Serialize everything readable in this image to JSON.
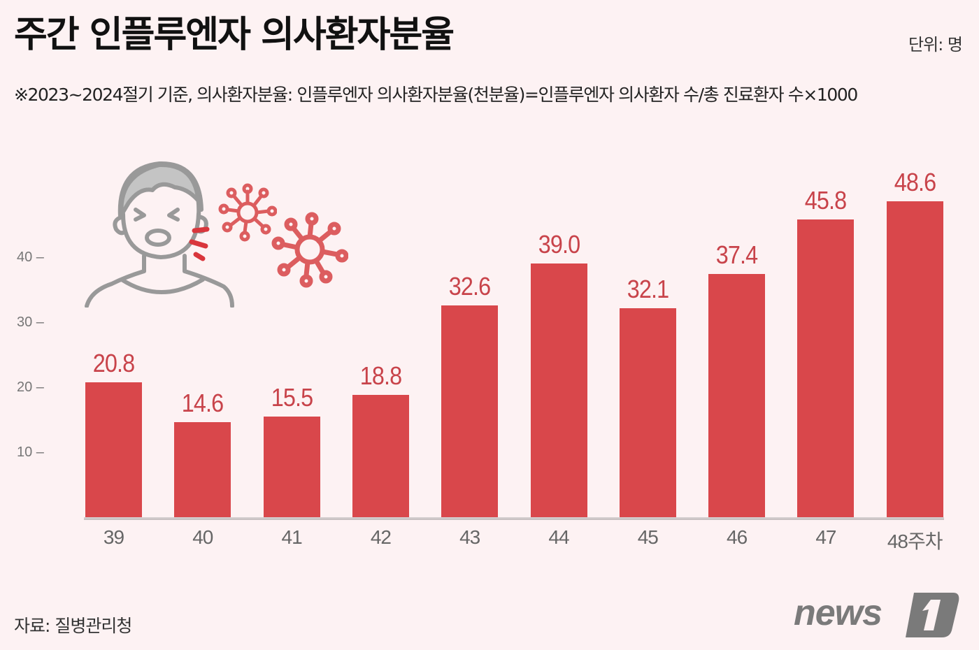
{
  "header": {
    "title": "주간 인플루엔자 의사환자분율",
    "unit": "단위: 명",
    "note": "※2023~2024절기 기준, 의사환자분율: 인플루엔자 의사환자분율(천분율)=인플루엔자 의사환자 수/총 진료환자 수×1000"
  },
  "footer": {
    "source": "자료: 질병관리청",
    "logo_text": "news1"
  },
  "colors": {
    "background": "#fdf2f3",
    "bar": "#d9474b",
    "value_label": "#c8434a",
    "illustration_gray": "#999999",
    "virus": "#dc5d5f"
  },
  "chart_data": {
    "type": "bar",
    "title": "주간 인플루엔자 의사환자분율",
    "subtitle": "※2023~2024절기 기준, 의사환자분율: 인플루엔자 의사환자분율(천분율)=인플루엔자 의사환자 수/총 진료환자 수×1000",
    "xlabel": "주차",
    "ylabel": "단위: 명",
    "categories": [
      "39",
      "40",
      "41",
      "42",
      "43",
      "44",
      "45",
      "46",
      "47",
      "48주차"
    ],
    "values": [
      20.8,
      14.6,
      15.5,
      18.8,
      32.6,
      39.0,
      32.1,
      37.4,
      45.8,
      48.6
    ],
    "value_labels": [
      "20.8",
      "14.6",
      "15.5",
      "18.8",
      "32.6",
      "39.0",
      "32.1",
      "37.4",
      "45.8",
      "48.6"
    ],
    "yticks": [
      "10",
      "20",
      "30",
      "40"
    ],
    "ylim": [
      0,
      50
    ],
    "grid": false,
    "legend": null,
    "source": "자료: 질병관리청"
  }
}
